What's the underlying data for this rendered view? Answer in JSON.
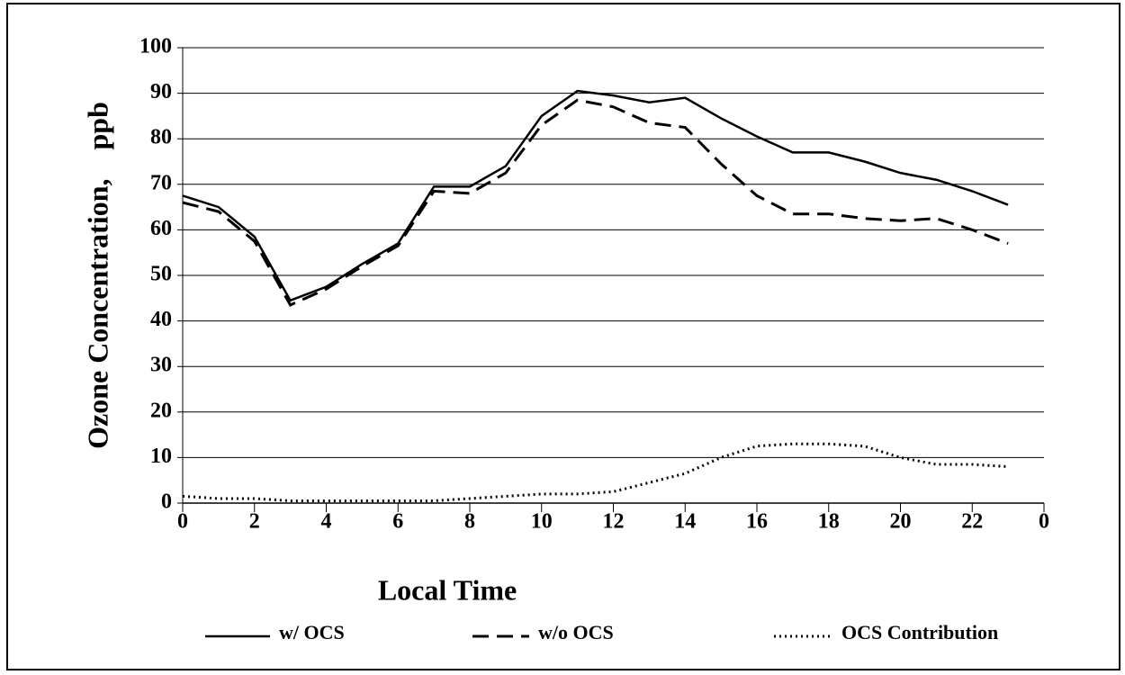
{
  "chart_data": {
    "type": "line",
    "xlabel": "Local Time",
    "ylabel": "Ozone Concentration,    ppb",
    "x": [
      0,
      1,
      2,
      3,
      4,
      5,
      6,
      7,
      8,
      9,
      10,
      11,
      12,
      13,
      14,
      15,
      16,
      17,
      18,
      19,
      20,
      21,
      22,
      23
    ],
    "series": [
      {
        "name": "w/ OCS",
        "color": "#000000",
        "style": "solid",
        "values": [
          67.5,
          65,
          58.5,
          44.5,
          47.5,
          52.5,
          57,
          69.5,
          69.5,
          74,
          85,
          90.5,
          89.5,
          88,
          89,
          84.5,
          80.5,
          77,
          77,
          75,
          72.5,
          71,
          68.5,
          65.5
        ]
      },
      {
        "name": "w/o OCS",
        "color": "#000000",
        "style": "dashed",
        "values": [
          66,
          64,
          57.5,
          43.5,
          47,
          52,
          56.5,
          68.5,
          68,
          72.5,
          83,
          88.5,
          87,
          83.5,
          82.5,
          74.5,
          67.5,
          63.5,
          63.5,
          62.5,
          62,
          62.5,
          60,
          57
        ]
      },
      {
        "name": "OCS Contribution",
        "color": "#000000",
        "style": "dotted",
        "values": [
          1.5,
          1,
          1,
          0.5,
          0.5,
          0.5,
          0.5,
          0.5,
          1,
          1.5,
          2,
          2,
          2.5,
          4.5,
          6.5,
          10,
          12.5,
          13,
          13,
          12.5,
          10,
          8.5,
          8.5,
          8
        ]
      }
    ],
    "xlim": [
      0,
      24
    ],
    "xticks": [
      0,
      2,
      4,
      6,
      8,
      10,
      12,
      14,
      16,
      18,
      20,
      22,
      {
        "value": 24,
        "label": "0"
      }
    ],
    "ylim": [
      0,
      100
    ],
    "yticks": [
      0,
      10,
      20,
      30,
      40,
      50,
      60,
      70,
      80,
      90,
      100
    ],
    "grid": true,
    "legend": "bottom"
  }
}
